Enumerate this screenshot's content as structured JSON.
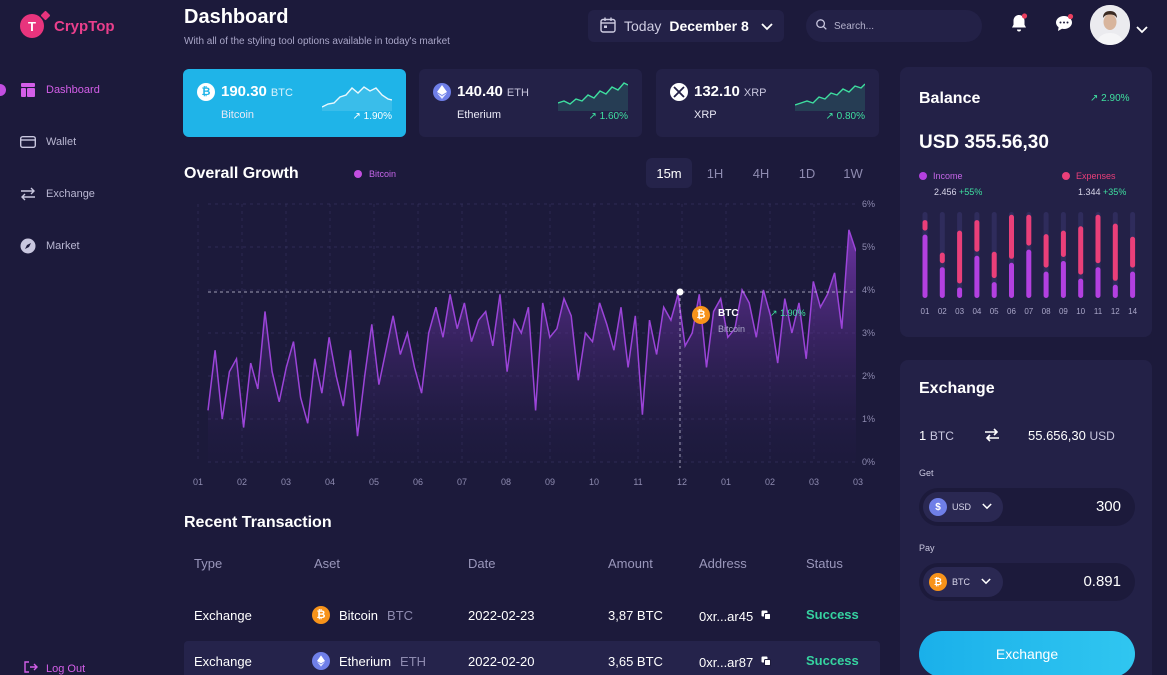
{
  "app": {
    "name": "CrypTop",
    "logo_letter": "T"
  },
  "sidebar": {
    "items": [
      {
        "label": "Dashboard",
        "icon": "dashboard-icon",
        "active": true
      },
      {
        "label": "Wallet",
        "icon": "wallet-icon"
      },
      {
        "label": "Exchange",
        "icon": "exchange-icon"
      },
      {
        "label": "Market",
        "icon": "compass-icon"
      }
    ],
    "logout": "Log Out"
  },
  "header": {
    "title": "Dashboard",
    "subtitle": "With all of the styling tool options available in today's market",
    "date_prefix": "Today",
    "date": "December 8",
    "search_placeholder": "Search..."
  },
  "coins": [
    {
      "price": "190.30",
      "symbol": "BTC",
      "name": "Bitcoin",
      "change": "1.90%"
    },
    {
      "price": "140.40",
      "symbol": "ETH",
      "name": "Etherium",
      "change": "1.60%"
    },
    {
      "price": "132.10",
      "symbol": "XRP",
      "name": "XRP",
      "change": "0.80%"
    }
  ],
  "growth": {
    "title": "Overall Growth",
    "legend": "Bitcoin",
    "tabs": [
      "15m",
      "1H",
      "4H",
      "1D",
      "1W"
    ],
    "active_tab": "15m",
    "tooltip": {
      "symbol": "BTC",
      "name": "Bitcoin",
      "change": "1.90%"
    }
  },
  "chart_data": {
    "type": "area",
    "series": [
      {
        "name": "Bitcoin"
      }
    ],
    "x_ticks": [
      "01",
      "02",
      "03",
      "04",
      "05",
      "06",
      "07",
      "08",
      "09",
      "10",
      "11",
      "12",
      "01",
      "02",
      "03",
      "03"
    ],
    "y_ticks": [
      "6%",
      "5%",
      "4%",
      "3%",
      "2%",
      "1%",
      "0%"
    ],
    "ylim": [
      0,
      6
    ],
    "values": [
      1.2,
      2.6,
      1.0,
      2.1,
      2.4,
      0.8,
      2.3,
      1.7,
      3.5,
      2.1,
      1.4,
      2.2,
      2.8,
      1.5,
      0.9,
      2.4,
      1.6,
      2.9,
      2.0,
      1.3,
      2.6,
      0.6,
      2.0,
      3.2,
      1.8,
      2.6,
      3.4,
      2.5,
      3.0,
      2.2,
      1.6,
      3.0,
      3.6,
      2.9,
      3.9,
      3.1,
      3.7,
      2.8,
      3.3,
      3.5,
      2.7,
      3.9,
      2.1,
      3.3,
      3.0,
      3.6,
      1.2,
      3.7,
      2.9,
      3.1,
      3.8,
      3.4,
      1.9,
      3.0,
      2.8,
      3.7,
      3.2,
      2.6,
      3.6,
      2.2,
      3.4,
      1.1,
      3.3,
      2.5,
      3.6,
      3.3,
      3.9,
      2.7,
      3.0,
      3.9,
      2.2,
      3.5,
      3.8,
      2.9,
      3.1,
      4.0,
      3.7,
      2.9,
      4.0,
      3.4,
      2.3,
      3.8,
      3.0,
      3.7,
      2.4,
      4.2,
      3.6,
      3.9,
      4.4,
      3.1,
      5.4,
      4.9
    ]
  },
  "transactions": {
    "title": "Recent Transaction",
    "columns": [
      "Type",
      "Aset",
      "Date",
      "Amount",
      "Address",
      "Status"
    ],
    "rows": [
      {
        "type": "Exchange",
        "asset": "Bitcoin",
        "symbol": "BTC",
        "date": "2022-02-23",
        "amount": "3,87 BTC",
        "address": "0xr...ar45",
        "status": "Success"
      },
      {
        "type": "Exchange",
        "asset": "Etherium",
        "symbol": "ETH",
        "date": "2022-02-20",
        "amount": "3,65 BTC",
        "address": "0xr...ar87",
        "status": "Success"
      }
    ]
  },
  "balance": {
    "title": "Balance",
    "change": "2.90%",
    "value": "USD 355.56,30",
    "income_label": "Income",
    "income_value": "2.456",
    "income_change": "+55%",
    "expenses_label": "Expenses",
    "expenses_value": "1.344",
    "expenses_change": "+35%",
    "days": [
      "01",
      "02",
      "03",
      "04",
      "05",
      "06",
      "07",
      "08",
      "09",
      "10",
      "11",
      "12",
      "14"
    ],
    "income": [
      0.72,
      0.35,
      0.12,
      0.48,
      0.18,
      0.4,
      0.55,
      0.3,
      0.42,
      0.22,
      0.35,
      0.15,
      0.3
    ],
    "expenses": [
      0.12,
      0.12,
      0.6,
      0.36,
      0.3,
      0.5,
      0.35,
      0.38,
      0.3,
      0.55,
      0.55,
      0.65,
      0.35
    ],
    "colors": {
      "income": "#b340e0",
      "expenses": "#ea3f79"
    }
  },
  "exchange": {
    "title": "Exchange",
    "from_amount": "1",
    "from_symbol": "BTC",
    "to_amount": "55.656,30",
    "to_symbol": "USD",
    "get_label": "Get",
    "get_currency": "USD",
    "get_value": "300",
    "pay_label": "Pay",
    "pay_currency": "BTC",
    "pay_value": "0.891",
    "button": "Exchange"
  },
  "colors": {
    "accent": "#c24ee0",
    "brand": "#ea3f8c",
    "cyan": "#1fb4e8",
    "green": "#3fe0a0"
  }
}
